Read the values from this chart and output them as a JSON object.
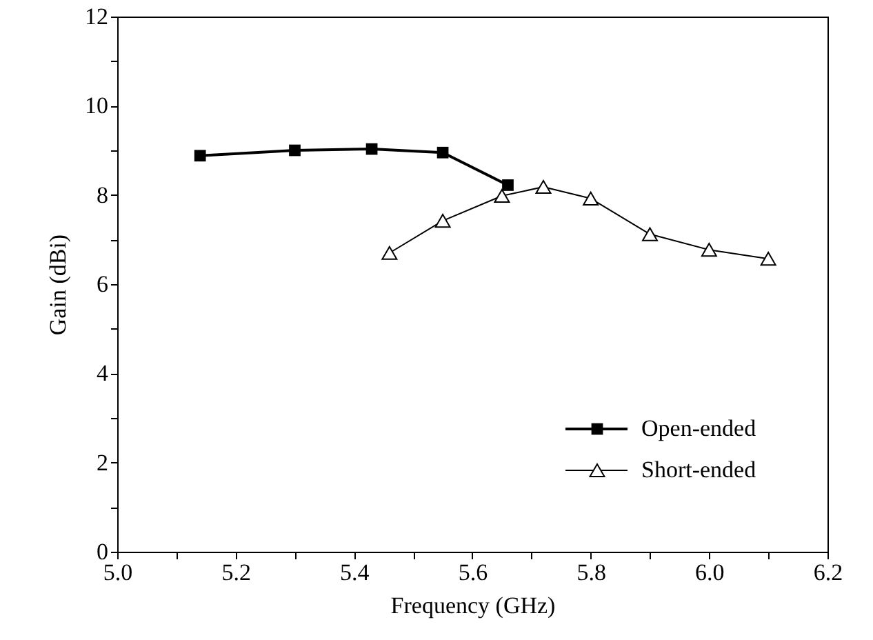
{
  "chart_data": {
    "type": "line",
    "xlabel": "Frequency (GHz)",
    "ylabel": "Gain (dBi)",
    "xlim": [
      5.0,
      6.2
    ],
    "xticks": [
      {
        "value": 5.0,
        "label": "5.0"
      },
      {
        "value": 5.1,
        "label": null
      },
      {
        "value": 5.2,
        "label": "5.2"
      },
      {
        "value": 5.3,
        "label": null
      },
      {
        "value": 5.4,
        "label": "5.4"
      },
      {
        "value": 5.5,
        "label": null
      },
      {
        "value": 5.6,
        "label": "5.6"
      },
      {
        "value": 5.7,
        "label": null
      },
      {
        "value": 5.8,
        "label": "5.8"
      },
      {
        "value": 5.9,
        "label": null
      },
      {
        "value": 6.0,
        "label": "6.0"
      },
      {
        "value": 6.1,
        "label": null
      },
      {
        "value": 6.2,
        "label": "6.2"
      }
    ],
    "ylim": [
      0,
      12
    ],
    "yticks": [
      0,
      {
        "value": 1,
        "label": null
      },
      2,
      {
        "value": 3,
        "label": null
      },
      4,
      {
        "value": 5,
        "label": null
      },
      6,
      {
        "value": 7,
        "label": null
      },
      8,
      {
        "value": 9,
        "label": null
      },
      10,
      {
        "value": 11,
        "label": null
      },
      12
    ],
    "grid": false,
    "legend": "bottom right",
    "line_style": "solid",
    "series": [
      {
        "name": "Open-ended",
        "color": "#000000",
        "marker": "square",
        "x": [
          5.14,
          5.3,
          5.43,
          5.55,
          5.66
        ],
        "values": [
          8.88,
          9.0,
          9.03,
          8.95,
          8.22
        ]
      },
      {
        "name": "Short-ended",
        "color": "#000000",
        "marker": "triangle",
        "x": [
          5.46,
          5.55,
          5.65,
          5.72,
          5.8,
          5.9,
          6.0,
          6.1
        ],
        "values": [
          6.7,
          7.42,
          7.98,
          8.18,
          7.92,
          7.12,
          6.77,
          6.57
        ]
      }
    ]
  }
}
